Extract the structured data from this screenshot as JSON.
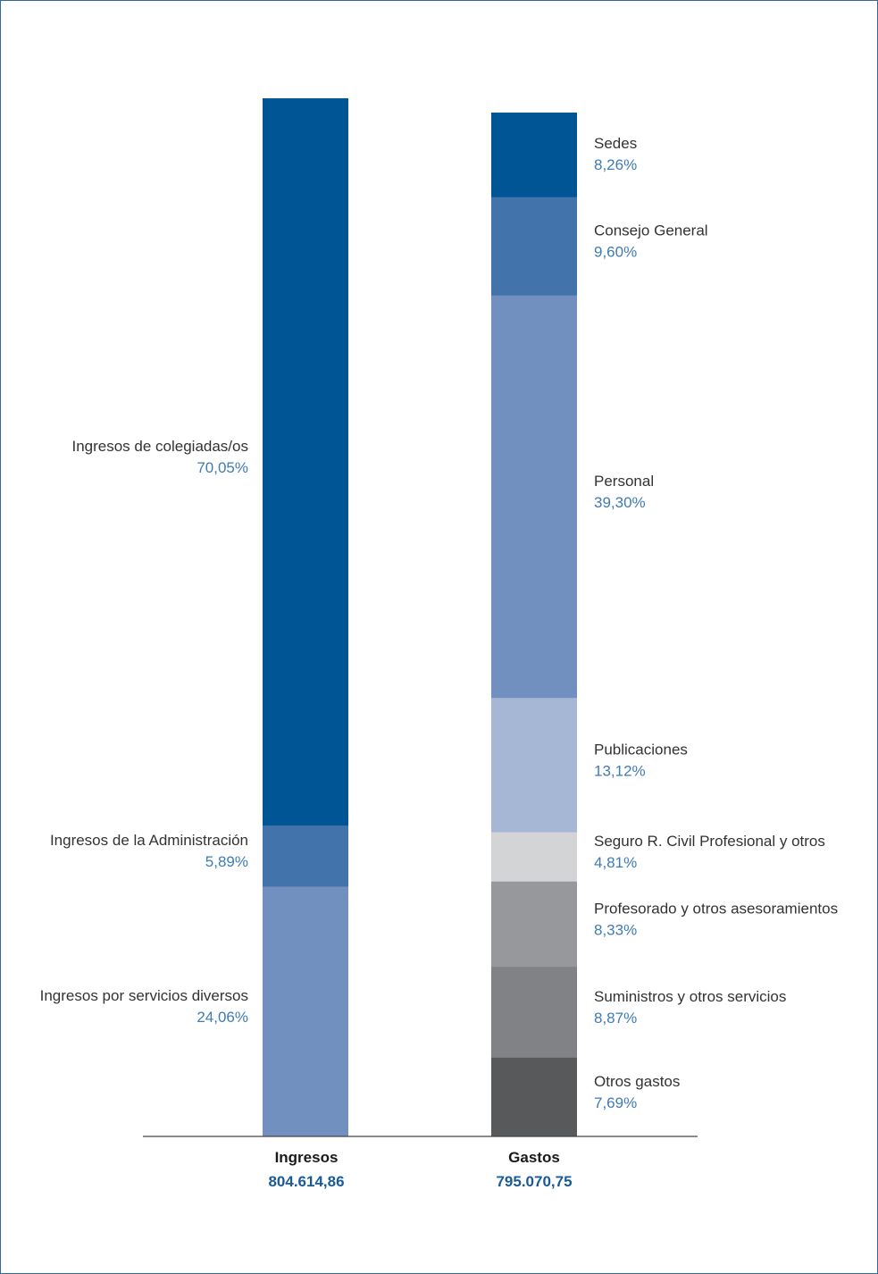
{
  "chart_data": {
    "type": "bar",
    "stacked": true,
    "bars": [
      {
        "name": "Ingresos",
        "total": "804.614,86",
        "segments": [
          {
            "label": "Ingresos de colegiadas/os",
            "value": 70.05,
            "value_text": "70,05%",
            "color": "#005694"
          },
          {
            "label": "Ingresos de la Administración",
            "value": 5.89,
            "value_text": "5,89%",
            "color": "#4274ab"
          },
          {
            "label": "Ingresos por servicios diversos",
            "value": 24.06,
            "value_text": "24,06%",
            "color": "#7290bf"
          }
        ]
      },
      {
        "name": "Gastos",
        "total": "795.070,75",
        "segments": [
          {
            "label": "Sedes",
            "value": 8.26,
            "value_text": "8,26%",
            "color": "#005694"
          },
          {
            "label": "Consejo General",
            "value": 9.6,
            "value_text": "9,60%",
            "color": "#4274ab"
          },
          {
            "label": "Personal",
            "value": 39.3,
            "value_text": "39,30%",
            "color": "#7290bf"
          },
          {
            "label": "Publicaciones",
            "value": 13.12,
            "value_text": "13,12%",
            "color": "#a6b7d6"
          },
          {
            "label": "Seguro R. Civil Profesional y otros",
            "value": 4.81,
            "value_text": "4,81%",
            "color": "#d3d4d6"
          },
          {
            "label": "Profesorado y otros asesoramientos",
            "value": 8.33,
            "value_text": "8,33%",
            "color": "#97989b"
          },
          {
            "label": "Suministros y otros servicios",
            "value": 8.87,
            "value_text": "8,87%",
            "color": "#818285"
          },
          {
            "label": "Otros gastos",
            "value": 7.69,
            "value_text": "7,69%",
            "color": "#58595b"
          }
        ]
      }
    ]
  }
}
